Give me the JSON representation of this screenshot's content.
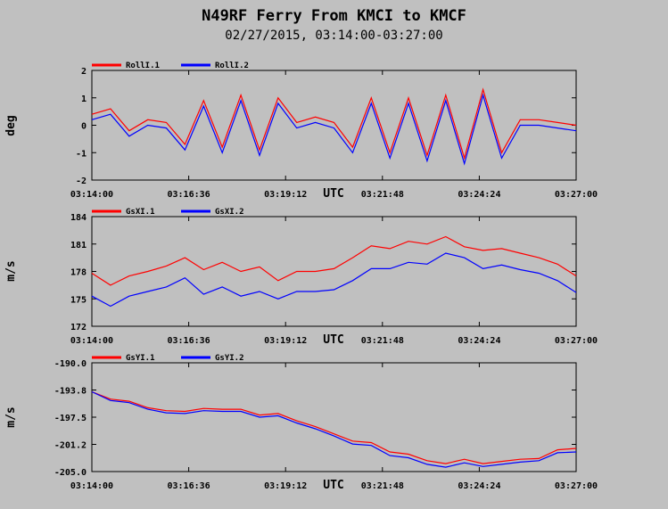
{
  "title": "N49RF Ferry From KMCI to KMCF",
  "subtitle": "02/27/2015, 03:14:00-03:27:00",
  "colors": {
    "background": "#c0c0c0",
    "series1": "#ff0000",
    "series2": "#0000ff",
    "axes": "#000000"
  },
  "chart_data": [
    {
      "type": "line",
      "ylabel": "deg",
      "xlabel": "UTC",
      "ylim": [
        -2,
        2
      ],
      "y_ticks": [
        "2",
        "1",
        "0",
        "-1",
        "-2"
      ],
      "x_ticks": [
        "03:14:00",
        "03:16:36",
        "03:19:12",
        "03:21:48",
        "03:24:24",
        "03:27:00"
      ],
      "grid": false,
      "legend": "top-left",
      "x": [
        "03:14:00",
        "03:14:30",
        "03:15:00",
        "03:15:30",
        "03:16:00",
        "03:16:30",
        "03:17:00",
        "03:17:30",
        "03:18:00",
        "03:18:30",
        "03:19:00",
        "03:19:30",
        "03:20:00",
        "03:20:30",
        "03:21:00",
        "03:21:30",
        "03:22:00",
        "03:22:30",
        "03:23:00",
        "03:23:30",
        "03:24:00",
        "03:24:30",
        "03:25:00",
        "03:25:30",
        "03:26:00",
        "03:26:30",
        "03:27:00"
      ],
      "series": [
        {
          "name": "RollI.1",
          "values": [
            0.4,
            0.6,
            -0.2,
            0.2,
            0.1,
            -0.7,
            0.9,
            -0.8,
            1.1,
            -0.9,
            1.0,
            0.1,
            0.3,
            0.1,
            -0.8,
            1.0,
            -1.0,
            1.0,
            -1.1,
            1.1,
            -1.2,
            1.3,
            -1.0,
            0.2,
            0.2,
            0.1,
            0.0
          ]
        },
        {
          "name": "RollI.2",
          "values": [
            0.2,
            0.4,
            -0.4,
            0.0,
            -0.1,
            -0.9,
            0.7,
            -1.0,
            0.9,
            -1.1,
            0.8,
            -0.1,
            0.1,
            -0.1,
            -1.0,
            0.8,
            -1.2,
            0.8,
            -1.3,
            0.9,
            -1.4,
            1.1,
            -1.2,
            0.0,
            0.0,
            -0.1,
            -0.2
          ]
        }
      ]
    },
    {
      "type": "line",
      "ylabel": "m/s",
      "xlabel": "UTC",
      "ylim": [
        172,
        184
      ],
      "y_ticks": [
        "184",
        "181",
        "178",
        "175",
        "172"
      ],
      "x_ticks": [
        "03:14:00",
        "03:16:36",
        "03:19:12",
        "03:21:48",
        "03:24:24",
        "03:27:00"
      ],
      "grid": false,
      "legend": "top-left",
      "x": [
        "03:14:00",
        "03:14:30",
        "03:15:00",
        "03:15:30",
        "03:16:00",
        "03:16:30",
        "03:17:00",
        "03:17:30",
        "03:18:00",
        "03:18:30",
        "03:19:00",
        "03:19:30",
        "03:20:00",
        "03:20:30",
        "03:21:00",
        "03:21:30",
        "03:22:00",
        "03:22:30",
        "03:23:00",
        "03:23:30",
        "03:24:00",
        "03:24:30",
        "03:25:00",
        "03:25:30",
        "03:26:00",
        "03:26:30",
        "03:27:00"
      ],
      "series": [
        {
          "name": "GsXI.1",
          "values": [
            177.8,
            176.5,
            177.5,
            178.0,
            178.6,
            179.5,
            178.2,
            179.0,
            178.0,
            178.5,
            177.0,
            178.0,
            178.0,
            178.3,
            179.5,
            180.8,
            180.5,
            181.3,
            181.0,
            181.8,
            180.7,
            180.3,
            180.5,
            180.0,
            179.5,
            178.8,
            177.5
          ]
        },
        {
          "name": "GsXI.2",
          "values": [
            175.3,
            174.2,
            175.3,
            175.8,
            176.3,
            177.3,
            175.5,
            176.3,
            175.3,
            175.8,
            175.0,
            175.8,
            175.8,
            176.0,
            177.0,
            178.3,
            178.3,
            179.0,
            178.8,
            180.0,
            179.5,
            178.3,
            178.7,
            178.2,
            177.8,
            177.0,
            175.7
          ]
        }
      ]
    },
    {
      "type": "line",
      "ylabel": "m/s",
      "xlabel": "UTC",
      "ylim": [
        -205.0,
        -190.0
      ],
      "y_ticks": [
        "-190.0",
        "-193.8",
        "-197.5",
        "-201.2",
        "-205.0"
      ],
      "x_ticks": [
        "03:14:00",
        "03:16:36",
        "03:19:12",
        "03:21:48",
        "03:24:24",
        "03:27:00"
      ],
      "grid": false,
      "legend": "top-left",
      "x": [
        "03:14:00",
        "03:14:30",
        "03:15:00",
        "03:15:30",
        "03:16:00",
        "03:16:30",
        "03:17:00",
        "03:17:30",
        "03:18:00",
        "03:18:30",
        "03:19:00",
        "03:19:30",
        "03:20:00",
        "03:20:30",
        "03:21:00",
        "03:21:30",
        "03:22:00",
        "03:22:30",
        "03:23:00",
        "03:23:30",
        "03:24:00",
        "03:24:30",
        "03:25:00",
        "03:25:30",
        "03:26:00",
        "03:26:30",
        "03:27:00"
      ],
      "series": [
        {
          "name": "GsYI.1",
          "values": [
            -194.0,
            -195.0,
            -195.3,
            -196.2,
            -196.6,
            -196.7,
            -196.3,
            -196.4,
            -196.4,
            -197.2,
            -197.0,
            -198.0,
            -198.8,
            -199.8,
            -200.8,
            -201.0,
            -202.3,
            -202.6,
            -203.5,
            -203.9,
            -203.3,
            -203.9,
            -203.6,
            -203.3,
            -203.2,
            -202.0,
            -201.8
          ]
        },
        {
          "name": "GsYI.2",
          "values": [
            -194.0,
            -195.2,
            -195.5,
            -196.4,
            -196.9,
            -197.0,
            -196.6,
            -196.7,
            -196.7,
            -197.5,
            -197.3,
            -198.3,
            -199.1,
            -200.1,
            -201.2,
            -201.4,
            -202.8,
            -203.1,
            -204.0,
            -204.4,
            -203.8,
            -204.3,
            -204.0,
            -203.7,
            -203.5,
            -202.4,
            -202.3
          ]
        }
      ]
    }
  ]
}
